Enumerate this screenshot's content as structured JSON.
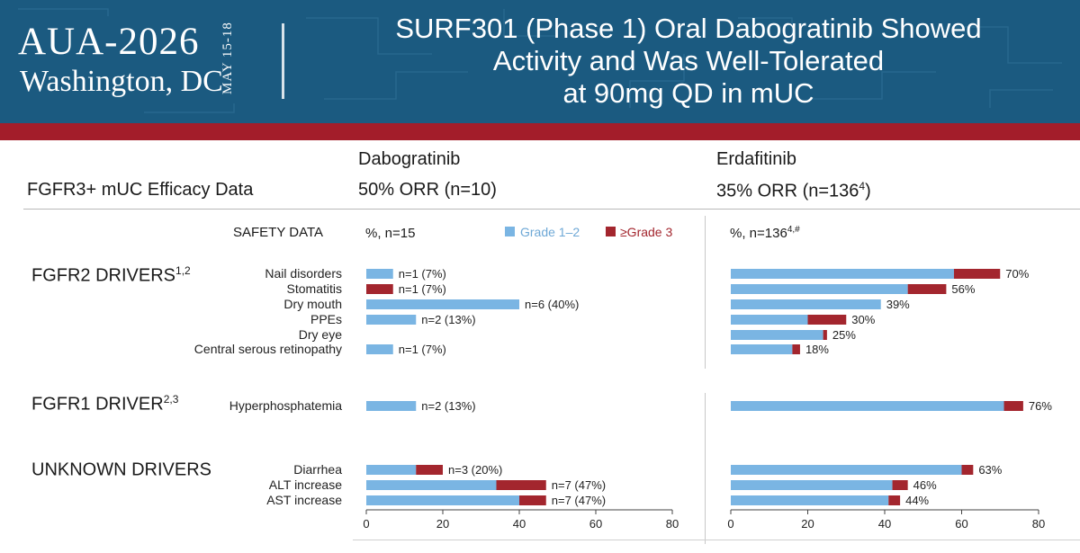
{
  "header": {
    "logo_main": "AUA-2026",
    "logo_sub": "Washington, DC",
    "logo_dates": "MAY 15-18",
    "title_lines": [
      "SURF301 (Phase 1) Oral Dabogratinib Showed",
      "Activity and Was Well-Tolerated",
      "at 90mg QD in mUC"
    ]
  },
  "efficacy": {
    "row_label": "FGFR3+ mUC Efficacy Data",
    "dabo_header": "Dabogratinib",
    "erda_header": "Erdafitinib",
    "dabo_orr": "50% ORR (n=10)",
    "erda_orr": "35% ORR (n=136",
    "erda_orr_sup": "4",
    "erda_orr_close": ")"
  },
  "safety": {
    "label": "SAFETY DATA",
    "dabo_pct": "%, n=15",
    "erda_pct": "%, n=136",
    "erda_pct_sup": "4,#",
    "legend_g12": "Grade 1–2",
    "legend_g3": "≥Grade 3"
  },
  "sections": [
    {
      "label": "FGFR2 DRIVERS",
      "sup": "1,2"
    },
    {
      "label": "FGFR1 DRIVER",
      "sup": "2,3"
    },
    {
      "label": "UNKNOWN DRIVERS",
      "sup": ""
    }
  ],
  "colors": {
    "header_bg": "#1b5a80",
    "red_band": "#a31d2a",
    "grade12": "#7ab5e3",
    "grade3": "#a3262e"
  },
  "chart_data": [
    {
      "type": "bar",
      "orientation": "horizontal",
      "stacked": true,
      "title": "Dabogratinib",
      "categories": [
        "Nail disorders",
        "Stomatitis",
        "Dry mouth",
        "PPEs",
        "Dry eye",
        "Central serous retinopathy",
        "Hyperphosphatemia",
        "Diarrhea",
        "ALT increase",
        "AST increase"
      ],
      "series": [
        {
          "name": "Grade 1–2",
          "values": [
            7,
            0,
            40,
            13,
            0,
            7,
            13,
            13,
            34,
            40
          ]
        },
        {
          "name": "≥Grade 3",
          "values": [
            0,
            7,
            0,
            0,
            0,
            0,
            0,
            7,
            13,
            7
          ]
        }
      ],
      "data_labels": [
        "n=1 (7%)",
        "n=1 (7%)",
        "n=6 (40%)",
        "n=2 (13%)",
        "",
        "n=1 (7%)",
        "n=2 (13%)",
        "n=3 (20%)",
        "n=7 (47%)",
        "n=7 (47%)"
      ],
      "xlim": [
        0,
        80
      ],
      "xticks": [
        0,
        20,
        40,
        60,
        80
      ]
    },
    {
      "type": "bar",
      "orientation": "horizontal",
      "stacked": true,
      "title": "Erdafitinib",
      "categories": [
        "Nail disorders",
        "Stomatitis",
        "Dry mouth",
        "PPEs",
        "Dry eye",
        "Central serous retinopathy",
        "Hyperphosphatemia",
        "Diarrhea",
        "ALT increase",
        "AST increase"
      ],
      "series": [
        {
          "name": "Grade 1–2",
          "values": [
            58,
            46,
            39,
            20,
            24,
            16,
            71,
            60,
            42,
            41
          ]
        },
        {
          "name": "≥Grade 3",
          "values": [
            12,
            10,
            0,
            10,
            1,
            2,
            5,
            3,
            4,
            3
          ]
        }
      ],
      "data_labels": [
        "70%",
        "56%",
        "39%",
        "30%",
        "25%",
        "18%",
        "76%",
        "63%",
        "46%",
        "44%"
      ],
      "xlim": [
        0,
        80
      ],
      "xticks": [
        0,
        20,
        40,
        60,
        80
      ]
    }
  ]
}
